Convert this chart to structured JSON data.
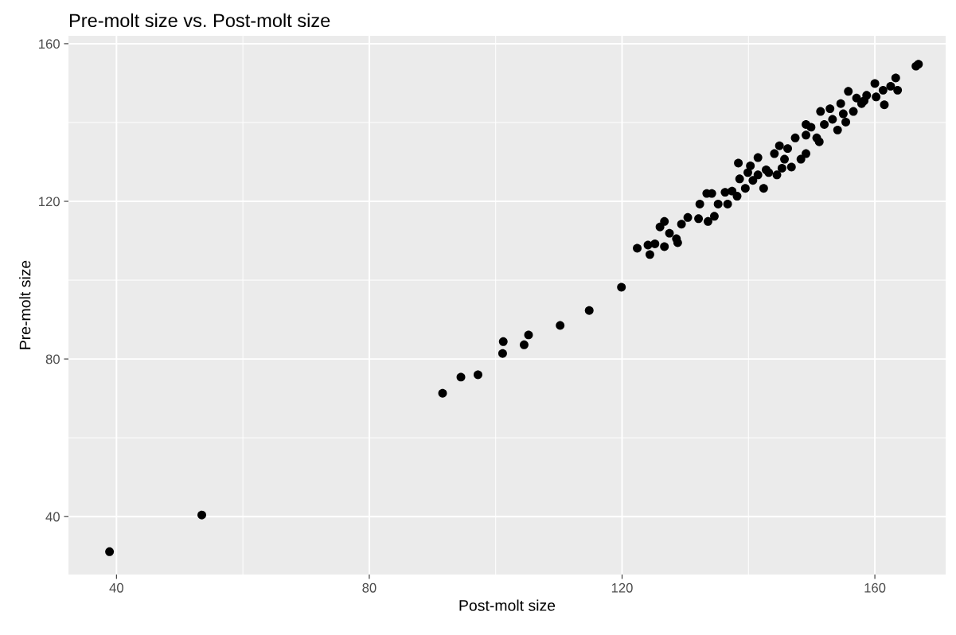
{
  "chart_data": {
    "type": "scatter",
    "title": "Pre-molt size vs. Post-molt size",
    "xlabel": "Post-molt size",
    "ylabel": "Pre-molt size",
    "x": [
      38.9,
      53.5,
      91.6,
      94.5,
      97.2,
      101.1,
      101.2,
      104.5,
      105.2,
      110.2,
      114.8,
      119.9,
      122.4,
      124.4,
      124.1,
      125.2,
      126.7,
      126.0,
      126.7,
      127.5,
      128.6,
      128.8,
      129.4,
      130.4,
      132.1,
      132.3,
      133.4,
      134.2,
      133.6,
      134.6,
      135.2,
      136.3,
      136.7,
      138.2,
      138.4,
      138.6,
      139.5,
      140.3,
      140.7,
      141.5,
      142.4,
      142.8,
      144.1,
      144.5,
      145.3,
      146.2,
      146.8,
      147.4,
      148.3,
      149.1,
      149.1,
      149.9,
      150.8,
      151.2,
      151.4,
      152.0,
      152.9,
      153.3,
      154.1,
      154.6,
      155.4,
      155.8,
      156.6,
      157.1,
      157.9,
      158.7,
      160.0,
      160.2,
      161.3,
      161.5,
      162.5,
      163.3,
      163.6,
      166.5,
      166.9,
      144.9,
      145.7,
      143.2,
      139.9,
      141.5,
      137.4,
      149.1,
      155.0,
      158.3
    ],
    "values": [
      31.1,
      40.4,
      71.3,
      75.4,
      76.0,
      81.4,
      84.4,
      83.6,
      86.1,
      88.5,
      92.3,
      98.2,
      108.1,
      106.5,
      108.9,
      109.2,
      108.5,
      113.5,
      114.9,
      111.9,
      110.5,
      109.5,
      114.2,
      115.9,
      115.6,
      119.3,
      122.0,
      122.0,
      114.9,
      116.2,
      119.3,
      122.3,
      119.3,
      121.3,
      129.7,
      125.7,
      123.3,
      129.0,
      125.3,
      131.1,
      123.3,
      128.0,
      132.1,
      126.7,
      128.4,
      133.4,
      128.7,
      136.1,
      130.7,
      132.1,
      136.8,
      138.8,
      136.1,
      135.1,
      142.8,
      139.5,
      143.5,
      140.8,
      138.1,
      144.8,
      140.1,
      147.9,
      142.8,
      146.2,
      144.8,
      146.9,
      149.9,
      146.5,
      148.2,
      144.5,
      149.2,
      151.3,
      148.2,
      154.3,
      154.8,
      134.1,
      130.7,
      127.3,
      127.3,
      126.7,
      122.6,
      139.5,
      142.2,
      145.5
    ],
    "color": "#000000",
    "marker": "circle",
    "grid": true,
    "xlim": [
      32.4,
      171.2
    ],
    "ylim": [
      25.3,
      162.0
    ],
    "xticks": [
      40,
      80,
      120,
      160
    ],
    "yticks": [
      40,
      80,
      120,
      160
    ]
  }
}
